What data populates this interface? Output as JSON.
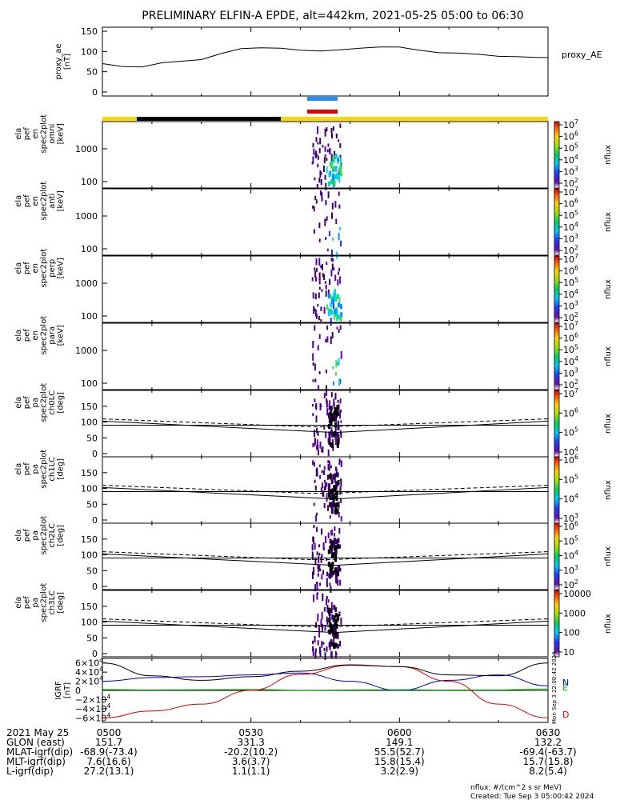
{
  "title": "PRELIMINARY ELFIN-A EPDE, alt=442km, 2021-05-25 05:00 to 06:30",
  "colors": {
    "sun_bar": "#ffd700",
    "shadow_bar": "#000000",
    "blue_marker": "#1e90ff",
    "red_marker": "#e00000",
    "grf_n": "#0000cc",
    "grf_e": "#00bb00",
    "grf_d": "#dd0000"
  },
  "footer": {
    "nflux_units": "nflux: #/(cm^2 s sr MeV)",
    "created": "Created: Tue Sep  3 05:00:42 2024",
    "side_stamp": "Mon Sep  3 22:00:42 2024"
  },
  "chart_data": [
    {
      "type": "line",
      "ylabel": "proxy_ae [nT]",
      "ylim": [
        -10,
        160
      ],
      "yticks": [
        "0",
        "50",
        "100",
        "150"
      ],
      "legend": "proxy_AE",
      "series": [
        {
          "name": "proxy_AE",
          "x": [
            0,
            4,
            8,
            12,
            16,
            20,
            24,
            28,
            32,
            36,
            40,
            44,
            48,
            52,
            56,
            60,
            64,
            68,
            72,
            76,
            80,
            84,
            88,
            90
          ],
          "values": [
            70,
            63,
            62,
            72,
            76,
            80,
            95,
            107,
            109,
            108,
            103,
            101,
            104,
            108,
            111,
            111,
            103,
            97,
            96,
            93,
            88,
            87,
            85,
            85
          ]
        }
      ]
    },
    {
      "type": "heatmap",
      "ylabel": "ela pef en spec2plot omni [keV]",
      "yscale": "log",
      "yticks": [
        "100",
        "1000"
      ],
      "colorbar": {
        "label": "nflux",
        "ticks": [
          "10^2",
          "10^3",
          "10^4",
          "10^5",
          "10^6",
          "10^7"
        ]
      },
      "burst_minutes": [
        45.5,
        47.5
      ]
    },
    {
      "type": "heatmap",
      "ylabel": "ela pef en spec2plot anti [keV]",
      "yscale": "log",
      "yticks": [
        "100",
        "1000"
      ],
      "colorbar": {
        "label": "nflux",
        "ticks": [
          "10^2",
          "10^3",
          "10^4",
          "10^5",
          "10^6",
          "10^7"
        ]
      },
      "burst_minutes": [
        45.5,
        47.5
      ]
    },
    {
      "type": "heatmap",
      "ylabel": "ela pef en spec2plot perp [keV]",
      "yscale": "log",
      "yticks": [
        "100",
        "1000"
      ],
      "colorbar": {
        "label": "nflux",
        "ticks": [
          "10^2",
          "10^3",
          "10^4",
          "10^5",
          "10^6",
          "10^7"
        ]
      },
      "burst_minutes": [
        45.5,
        47.5
      ]
    },
    {
      "type": "heatmap",
      "ylabel": "ela pef en spec2plot para [keV]",
      "yscale": "log",
      "yticks": [
        "100",
        "1000"
      ],
      "colorbar": {
        "label": "nflux",
        "ticks": [
          "10^2",
          "10^3",
          "10^4",
          "10^5",
          "10^6",
          "10^7"
        ]
      },
      "burst_minutes": [
        45.5,
        47.5
      ]
    },
    {
      "type": "heatmap",
      "ylabel": "ela pef pa spec2plot ch0LC [deg]",
      "ylim": [
        0,
        180
      ],
      "yticks": [
        "0",
        "50",
        "100",
        "150"
      ],
      "colorbar": {
        "label": "nflux",
        "ticks": [
          "10^4",
          "10^5",
          "10^6",
          "10^7"
        ]
      },
      "burst_minutes": [
        45.5,
        47.5
      ]
    },
    {
      "type": "heatmap",
      "ylabel": "ela pef pa spec2plot ch1LC [deg]",
      "ylim": [
        0,
        180
      ],
      "yticks": [
        "0",
        "50",
        "100",
        "150"
      ],
      "colorbar": {
        "label": "nflux",
        "ticks": [
          "10^3",
          "10^4",
          "10^5",
          "10^6"
        ]
      },
      "burst_minutes": [
        45.5,
        47.5
      ]
    },
    {
      "type": "heatmap",
      "ylabel": "ela pef pa spec2plot ch2LC [deg]",
      "ylim": [
        0,
        180
      ],
      "yticks": [
        "0",
        "50",
        "100",
        "150"
      ],
      "colorbar": {
        "label": "nflux",
        "ticks": [
          "10^2",
          "10^3",
          "10^4",
          "10^5",
          "10^6"
        ]
      },
      "burst_minutes": [
        45.5,
        47.5
      ]
    },
    {
      "type": "heatmap",
      "ylabel": "ela pef pa spec2plot ch3LC [deg]",
      "ylim": [
        0,
        180
      ],
      "yticks": [
        "0",
        "50",
        "100",
        "150"
      ],
      "colorbar": {
        "label": "nflux",
        "ticks": [
          "10",
          "100",
          "1000",
          "10000"
        ]
      },
      "burst_minutes": [
        45.5,
        47.5
      ]
    },
    {
      "type": "line",
      "ylabel": "IGRF [nT]",
      "ylim": [
        -70000,
        70000
      ],
      "yticks": [
        "6×10^4",
        "4×10^4",
        "2×10^4",
        "0",
        "−2×10^4",
        "−4×10^4",
        "−6×10^4"
      ],
      "series": [
        {
          "name": "N",
          "x": [
            0,
            10,
            20,
            30,
            40,
            50,
            60,
            70,
            80,
            90
          ],
          "values": [
            20000,
            28000,
            30000,
            34000,
            38000,
            20000,
            0,
            22000,
            34000,
            10000
          ]
        },
        {
          "name": "E",
          "x": [
            0,
            10,
            20,
            30,
            40,
            50,
            60,
            70,
            80,
            90
          ],
          "values": [
            2000,
            1000,
            1500,
            2000,
            500,
            1000,
            1500,
            800,
            1200,
            3000
          ]
        },
        {
          "name": "D",
          "x": [
            0,
            10,
            20,
            30,
            40,
            50,
            60,
            70,
            80,
            90
          ],
          "values": [
            -60000,
            -45000,
            -30000,
            0,
            35000,
            55000,
            52000,
            20000,
            -30000,
            -60000
          ]
        },
        {
          "name": "",
          "x": [
            0,
            10,
            20,
            30,
            40,
            50,
            60,
            70,
            80,
            90
          ],
          "values": [
            60000,
            32000,
            22000,
            30000,
            42000,
            56000,
            52000,
            34000,
            32000,
            60000
          ]
        }
      ]
    }
  ],
  "time_axis": {
    "date": "2021 May 25",
    "ticks": [
      "0500",
      "0530",
      "0600",
      "0630"
    ],
    "rows": [
      {
        "label": "GLON (east)",
        "values": [
          "151.7",
          "331.3",
          "149.1",
          "132.2"
        ]
      },
      {
        "label": "MLAT-igrf(dip)",
        "values": [
          "-68.9(-73.4)",
          "-20.2(10.2)",
          "55.5(52.7)",
          "-69.4(-63.7)"
        ]
      },
      {
        "label": "MLT-igrf(dip)",
        "values": [
          "7.6(16.6)",
          "3.6(3.7)",
          "15.8(15.4)",
          "15.7(15.8)"
        ]
      },
      {
        "label": "L-igrf(dip)",
        "values": [
          "27.2(13.1)",
          "1.1(1.1)",
          "3.2(2.9)",
          "8.2(5.4)"
        ]
      }
    ]
  }
}
